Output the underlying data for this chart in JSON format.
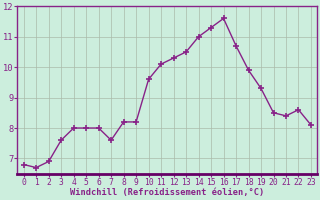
{
  "x": [
    0,
    1,
    2,
    3,
    4,
    5,
    6,
    7,
    8,
    9,
    10,
    11,
    12,
    13,
    14,
    15,
    16,
    17,
    18,
    19,
    20,
    21,
    22,
    23
  ],
  "y": [
    6.8,
    6.7,
    6.9,
    7.6,
    8.0,
    8.0,
    8.0,
    7.6,
    8.2,
    8.2,
    9.6,
    10.1,
    10.3,
    10.5,
    11.0,
    11.3,
    11.6,
    10.7,
    9.9,
    9.3,
    8.5,
    8.4,
    8.6,
    8.1
  ],
  "line_color": "#882288",
  "marker": "+",
  "markersize": 4,
  "markeredgewidth": 1.2,
  "linewidth": 1.0,
  "bg_color": "#cceedd",
  "grid_color": "#aabbaa",
  "xlabel": "Windchill (Refroidissement éolien,°C)",
  "xlabel_color": "#882288",
  "tick_color": "#882288",
  "ylim": [
    6.5,
    12.0
  ],
  "yticks": [
    7,
    8,
    9,
    10,
    11,
    12
  ],
  "xtick_labels": [
    "0",
    "1",
    "2",
    "3",
    "4",
    "5",
    "6",
    "7",
    "8",
    "9",
    "10",
    "11",
    "12",
    "13",
    "14",
    "15",
    "16",
    "17",
    "18",
    "19",
    "20",
    "21",
    "22",
    "23"
  ],
  "font_family": "monospace",
  "label_fontsize": 5.5,
  "tick_fontsize": 5.8,
  "xlabel_fontsize": 6.2,
  "ylabel_fontsize": 6.5
}
